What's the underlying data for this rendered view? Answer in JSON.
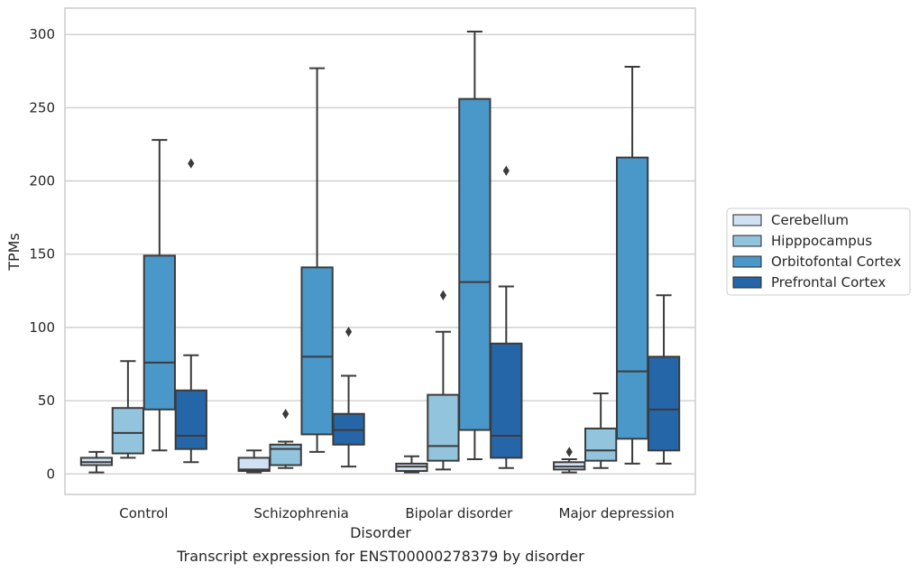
{
  "caption": "Transcript expression for ENST00000278379 by disorder",
  "chart_data": {
    "type": "box",
    "xlabel": "Disorder",
    "ylabel": "TPMs",
    "ylim": [
      -14,
      318
    ],
    "yticks": [
      0,
      50,
      100,
      150,
      200,
      250,
      300
    ],
    "grid": true,
    "legend_position": "right",
    "categories": [
      "Control",
      "Schizophrenia",
      "Bipolar disorder",
      "Major depression"
    ],
    "series": [
      {
        "name": "Cerebellum",
        "color": "#cfe1f2",
        "boxes": [
          {
            "whislo": 1,
            "q1": 6,
            "med": 8,
            "q3": 11,
            "whishi": 15,
            "fliers": []
          },
          {
            "whislo": 1,
            "q1": 2,
            "med": 3,
            "q3": 11,
            "whishi": 16,
            "fliers": []
          },
          {
            "whislo": 1,
            "q1": 2,
            "med": 5,
            "q3": 7,
            "whishi": 12,
            "fliers": []
          },
          {
            "whislo": 1,
            "q1": 3,
            "med": 5,
            "q3": 8,
            "whishi": 10,
            "fliers": [
              15
            ]
          }
        ]
      },
      {
        "name": "Hipppocampus",
        "color": "#93c4de",
        "boxes": [
          {
            "whislo": 11,
            "q1": 14,
            "med": 28,
            "q3": 45,
            "whishi": 77,
            "fliers": []
          },
          {
            "whislo": 4,
            "q1": 6,
            "med": 17,
            "q3": 20,
            "whishi": 22,
            "fliers": [
              41
            ]
          },
          {
            "whislo": 3,
            "q1": 9,
            "med": 19,
            "q3": 54,
            "whishi": 97,
            "fliers": [
              122
            ]
          },
          {
            "whislo": 4,
            "q1": 9,
            "med": 16,
            "q3": 31,
            "whishi": 55,
            "fliers": []
          }
        ]
      },
      {
        "name": "Orbitofontal Cortex",
        "color": "#4a98c9",
        "boxes": [
          {
            "whislo": 16,
            "q1": 44,
            "med": 76,
            "q3": 149,
            "whishi": 228,
            "fliers": []
          },
          {
            "whislo": 15,
            "q1": 27,
            "med": 80,
            "q3": 141,
            "whishi": 277,
            "fliers": []
          },
          {
            "whislo": 10,
            "q1": 30,
            "med": 131,
            "q3": 256,
            "whishi": 302,
            "fliers": []
          },
          {
            "whislo": 7,
            "q1": 24,
            "med": 70,
            "q3": 216,
            "whishi": 278,
            "fliers": []
          }
        ]
      },
      {
        "name": "Prefrontal Cortex",
        "color": "#2566a8",
        "boxes": [
          {
            "whislo": 8,
            "q1": 17,
            "med": 26,
            "q3": 57,
            "whishi": 81,
            "fliers": [
              212
            ]
          },
          {
            "whislo": 5,
            "q1": 20,
            "med": 30,
            "q3": 41,
            "whishi": 67,
            "fliers": [
              97
            ]
          },
          {
            "whislo": 4,
            "q1": 11,
            "med": 26,
            "q3": 89,
            "whishi": 128,
            "fliers": [
              207
            ]
          },
          {
            "whislo": 7,
            "q1": 16,
            "med": 44,
            "q3": 80,
            "whishi": 122,
            "fliers": []
          }
        ]
      }
    ]
  }
}
